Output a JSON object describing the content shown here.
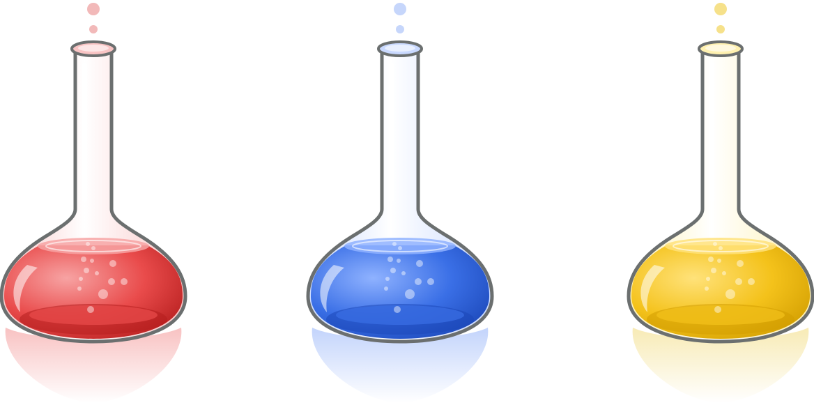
{
  "scene": {
    "background": "#ffffff",
    "outline_color": "#6b6f6f",
    "flasks": [
      {
        "name": "red-flask",
        "liquid_light": "#f7a3a3",
        "liquid_main": "#e94b4b",
        "liquid_dark": "#b51d1d",
        "glass_tint": "#f9c4c4",
        "bubble_color": "#f2b9b9",
        "reflection": "#f7b7b7"
      },
      {
        "name": "blue-flask",
        "liquid_light": "#8fb2ff",
        "liquid_main": "#3a6fe6",
        "liquid_dark": "#1b47b8",
        "glass_tint": "#c9d9ff",
        "bubble_color": "#c6d6fb",
        "reflection": "#b8ccfb"
      },
      {
        "name": "yellow-flask",
        "liquid_light": "#ffe27a",
        "liquid_main": "#f4c21b",
        "liquid_dark": "#d19d00",
        "glass_tint": "#fff1b0",
        "bubble_color": "#f6e18a",
        "reflection": "#f6e7a8"
      }
    ]
  }
}
